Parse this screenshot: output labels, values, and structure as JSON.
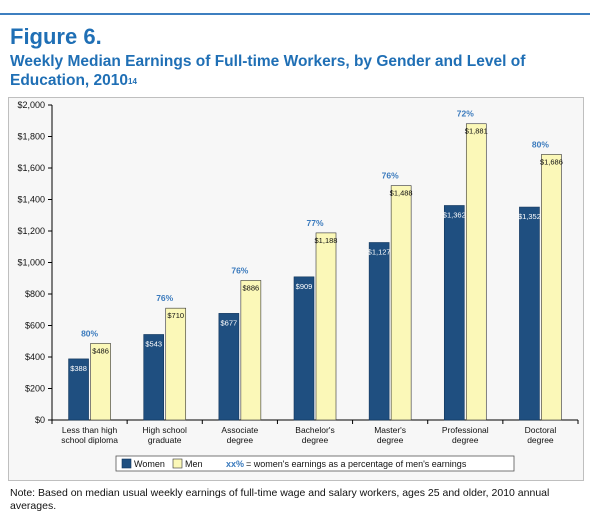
{
  "figure_label": "Figure 6.",
  "title_main": "Weekly Median Earnings of Full-time Workers, by Gender and Level of Education, 2010",
  "title_superscript": "14",
  "note": "Note: Based on median usual weekly earnings of full-time wage and salary workers, ages 25 and older, 2010 annual averages.",
  "legend": {
    "women": "Women",
    "men": "Men",
    "ratio_key": "xx%",
    "ratio_text": "= women's earnings as a percentage of men's earnings"
  },
  "colors": {
    "women": "#1f4f80",
    "men": "#fbf8b8",
    "percent": "#3a7abd",
    "accent": "#1f6fb5"
  },
  "chart_data": {
    "type": "bar",
    "categories": [
      [
        "Less than high",
        "school diploma"
      ],
      [
        "High school",
        "graduate"
      ],
      [
        "Associate",
        "degree"
      ],
      [
        "Bachelor's",
        "degree"
      ],
      [
        "Master's",
        "degree"
      ],
      [
        "Professional",
        "degree"
      ],
      [
        "Doctoral",
        "degree"
      ]
    ],
    "series": [
      {
        "name": "Women",
        "values": [
          388,
          543,
          677,
          909,
          1127,
          1362,
          1352
        ],
        "labels": [
          "$388",
          "$543",
          "$677",
          "$909",
          "$1,127",
          "$1,362",
          "$1,352"
        ]
      },
      {
        "name": "Men",
        "values": [
          486,
          710,
          886,
          1188,
          1488,
          1881,
          1686
        ],
        "labels": [
          "$486",
          "$710",
          "$886",
          "$1,188",
          "$1,488",
          "$1,881",
          "$1,686"
        ]
      }
    ],
    "percent_labels": [
      "80%",
      "76%",
      "76%",
      "77%",
      "76%",
      "72%",
      "80%"
    ],
    "ylim": [
      0,
      2000
    ],
    "yticks": [
      0,
      200,
      400,
      600,
      800,
      1000,
      1200,
      1400,
      1600,
      1800,
      2000
    ],
    "ytick_labels": [
      "$0",
      "$200",
      "$400",
      "$600",
      "$800",
      "$1,000",
      "$1,200",
      "$1,400",
      "$1,600",
      "$1,800",
      "$2,000"
    ],
    "grid": false,
    "legend_position": "bottom"
  }
}
